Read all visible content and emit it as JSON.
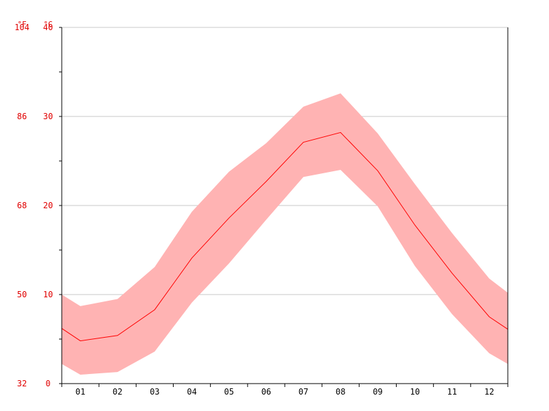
{
  "chart_data": {
    "type": "area",
    "title": "",
    "xlabel": "",
    "ylabel": "",
    "units": {
      "left": "°F",
      "right": "°C"
    },
    "categories": [
      "01",
      "02",
      "03",
      "04",
      "05",
      "06",
      "07",
      "08",
      "09",
      "10",
      "11",
      "12"
    ],
    "x_range": [
      0.5,
      12.5
    ],
    "ylim": [
      0,
      40
    ],
    "y_ticks_c": [
      "0",
      "10",
      "20",
      "30",
      "40"
    ],
    "y_ticks_f": [
      "32",
      "50",
      "68",
      "86",
      "104"
    ],
    "grid": true,
    "series": [
      {
        "role": "mean",
        "values": [
          4.8,
          5.4,
          8.3,
          14.1,
          18.6,
          22.7,
          27.1,
          28.2,
          23.9,
          17.8,
          12.4,
          7.5
        ],
        "start": 6.2,
        "end": 6.1
      },
      {
        "role": "max",
        "values": [
          8.7,
          9.5,
          13.1,
          19.3,
          23.8,
          27.0,
          31.1,
          32.6,
          28.1,
          22.4,
          16.9,
          11.8
        ],
        "start": 10.0,
        "end": 10.2
      },
      {
        "role": "min",
        "values": [
          1.0,
          1.3,
          3.6,
          9.1,
          13.5,
          18.4,
          23.2,
          24.0,
          19.9,
          13.2,
          7.8,
          3.4
        ],
        "start": 2.2,
        "end": 2.2
      }
    ],
    "colors": {
      "band": "#ffb3b3",
      "line": "#ff0000",
      "labels": "#e00000",
      "grid": "#c8c8c8",
      "axis": "#000000"
    }
  }
}
